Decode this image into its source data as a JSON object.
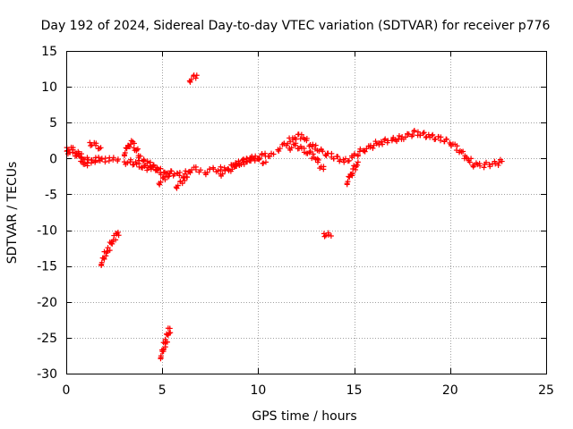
{
  "chart_data": {
    "type": "scatter",
    "title": "Day 192 of 2024, Sidereal Day-to-day VTEC variation (SDTVAR) for receiver p776",
    "xlabel": "GPS time / hours",
    "ylabel": "SDTVAR / TECUs",
    "xlim": [
      0,
      25
    ],
    "ylim": [
      -30,
      15
    ],
    "x_ticks": [
      0,
      5,
      10,
      15,
      20,
      25
    ],
    "y_ticks": [
      15,
      10,
      5,
      0,
      -5,
      -10,
      -15,
      -20,
      -25,
      -30
    ],
    "x_tick_labels": [
      "0",
      "5",
      "10",
      "15",
      "20",
      "25"
    ],
    "y_tick_labels": [
      "15",
      "10",
      "5",
      "0",
      "-5",
      "-10",
      "-15",
      "-20",
      "-25",
      "-30"
    ],
    "grid": true,
    "marker": "plus",
    "series": [
      {
        "name": "SDTVAR",
        "color": "#ff0000",
        "segments": [
          {
            "x": [
              0.0,
              0.3,
              0.6,
              0.9,
              1.1,
              1.3,
              1.5,
              1.7,
              1.9,
              2.1,
              2.3,
              2.5,
              2.7
            ],
            "y": [
              1.5,
              1.2,
              0.8,
              0.2,
              -0.3,
              -0.5,
              -0.2,
              0.0,
              -0.3,
              -0.2,
              -0.1,
              0.0,
              -0.1
            ]
          },
          {
            "x": [
              0.0,
              0.3,
              0.6,
              0.9,
              1.1
            ],
            "y": [
              1.0,
              0.9,
              0.4,
              -0.5,
              -1.0
            ]
          },
          {
            "x": [
              1.2,
              1.5,
              1.8
            ],
            "y": [
              2.2,
              1.8,
              1.5
            ]
          },
          {
            "x": [
              3.0,
              3.2,
              3.4,
              3.6,
              3.8,
              4.0,
              4.2,
              4.4,
              4.6,
              4.8,
              5.0,
              5.2,
              5.5,
              5.8,
              6.1,
              6.4,
              6.7,
              7.0
            ],
            "y": [
              0.5,
              1.5,
              2.4,
              1.5,
              0.2,
              -0.4,
              -0.5,
              -0.9,
              -1.2,
              -1.5,
              -2.0,
              -2.3,
              -2.0,
              -2.2,
              -2.4,
              -1.7,
              -1.5,
              -1.6
            ]
          },
          {
            "x": [
              3.0,
              3.3,
              3.6,
              3.9,
              4.2,
              4.5,
              4.8
            ],
            "y": [
              -0.5,
              -0.5,
              -0.7,
              -1.0,
              -1.4,
              -1.2,
              -1.5
            ]
          },
          {
            "x": [
              4.8,
              5.0,
              5.2,
              5.4
            ],
            "y": [
              -3.5,
              -3.0,
              -2.5,
              -2.1
            ]
          },
          {
            "x": [
              5.7,
              5.9,
              6.1,
              6.3
            ],
            "y": [
              -4.0,
              -3.5,
              -3.0,
              -2.6
            ]
          },
          {
            "x": [
              7.2,
              7.6,
              8.0,
              8.4,
              8.8,
              9.2,
              9.6,
              10.0,
              10.4,
              10.8
            ],
            "y": [
              -2.0,
              -1.6,
              -1.5,
              -1.4,
              -0.9,
              -0.4,
              0.0,
              0.2,
              0.5,
              0.6
            ]
          },
          {
            "x": [
              8.0,
              8.4,
              8.8,
              9.2,
              9.6,
              10.0,
              10.4
            ],
            "y": [
              -2.2,
              -1.8,
              -1.0,
              -0.5,
              0.0,
              -0.3,
              -0.5
            ]
          },
          {
            "x": [
              11.0,
              11.3,
              11.6,
              11.9,
              12.2,
              12.5,
              12.8,
              13.1,
              13.4,
              13.7,
              14.0,
              14.3,
              14.6,
              14.9,
              15.2,
              15.5,
              15.8,
              16.1,
              16.4,
              16.7,
              17.0,
              17.3,
              17.6,
              17.9,
              18.2,
              18.5,
              18.8,
              19.1,
              19.4,
              19.7,
              20.0,
              20.3,
              20.6,
              20.9,
              21.2,
              21.5,
              21.8,
              22.1,
              22.4,
              22.7
            ],
            "y": [
              1.2,
              1.8,
              2.4,
              3.0,
              3.2,
              2.5,
              1.8,
              1.4,
              0.8,
              0.5,
              0.2,
              -0.2,
              -0.3,
              0.2,
              0.8,
              1.2,
              1.5,
              2.0,
              2.3,
              2.5,
              2.6,
              2.8,
              3.0,
              3.3,
              3.6,
              3.4,
              3.2,
              3.0,
              2.8,
              2.6,
              2.2,
              1.5,
              0.8,
              0.0,
              -0.8,
              -1.0,
              -0.9,
              -0.8,
              -0.7,
              -0.4
            ]
          },
          {
            "x": [
              11.6,
              11.9,
              12.2,
              12.5,
              12.8,
              13.1,
              13.4
            ],
            "y": [
              1.4,
              1.8,
              1.5,
              1.0,
              0.5,
              -0.5,
              -1.5
            ]
          },
          {
            "x": [
              14.6,
              14.8,
              15.0,
              15.2
            ],
            "y": [
              -3.5,
              -2.5,
              -1.5,
              -0.5
            ]
          },
          {
            "x": [
              13.4,
              13.6,
              13.8
            ],
            "y": [
              -10.5,
              -10.7,
              -10.8
            ]
          },
          {
            "x": [
              1.8,
              1.9,
              2.0,
              2.2,
              2.4,
              2.6,
              2.7
            ],
            "y": [
              -14.8,
              -14.2,
              -13.5,
              -12.5,
              -11.5,
              -10.8,
              -10.3
            ]
          },
          {
            "x": [
              4.9,
              5.0,
              5.1,
              5.2,
              5.3,
              5.4
            ],
            "y": [
              -27.8,
              -27.0,
              -26.2,
              -25.3,
              -24.5,
              -23.7
            ]
          },
          {
            "x": [
              6.4,
              6.6,
              6.8
            ],
            "y": [
              10.8,
              11.3,
              11.6
            ]
          }
        ]
      }
    ]
  }
}
